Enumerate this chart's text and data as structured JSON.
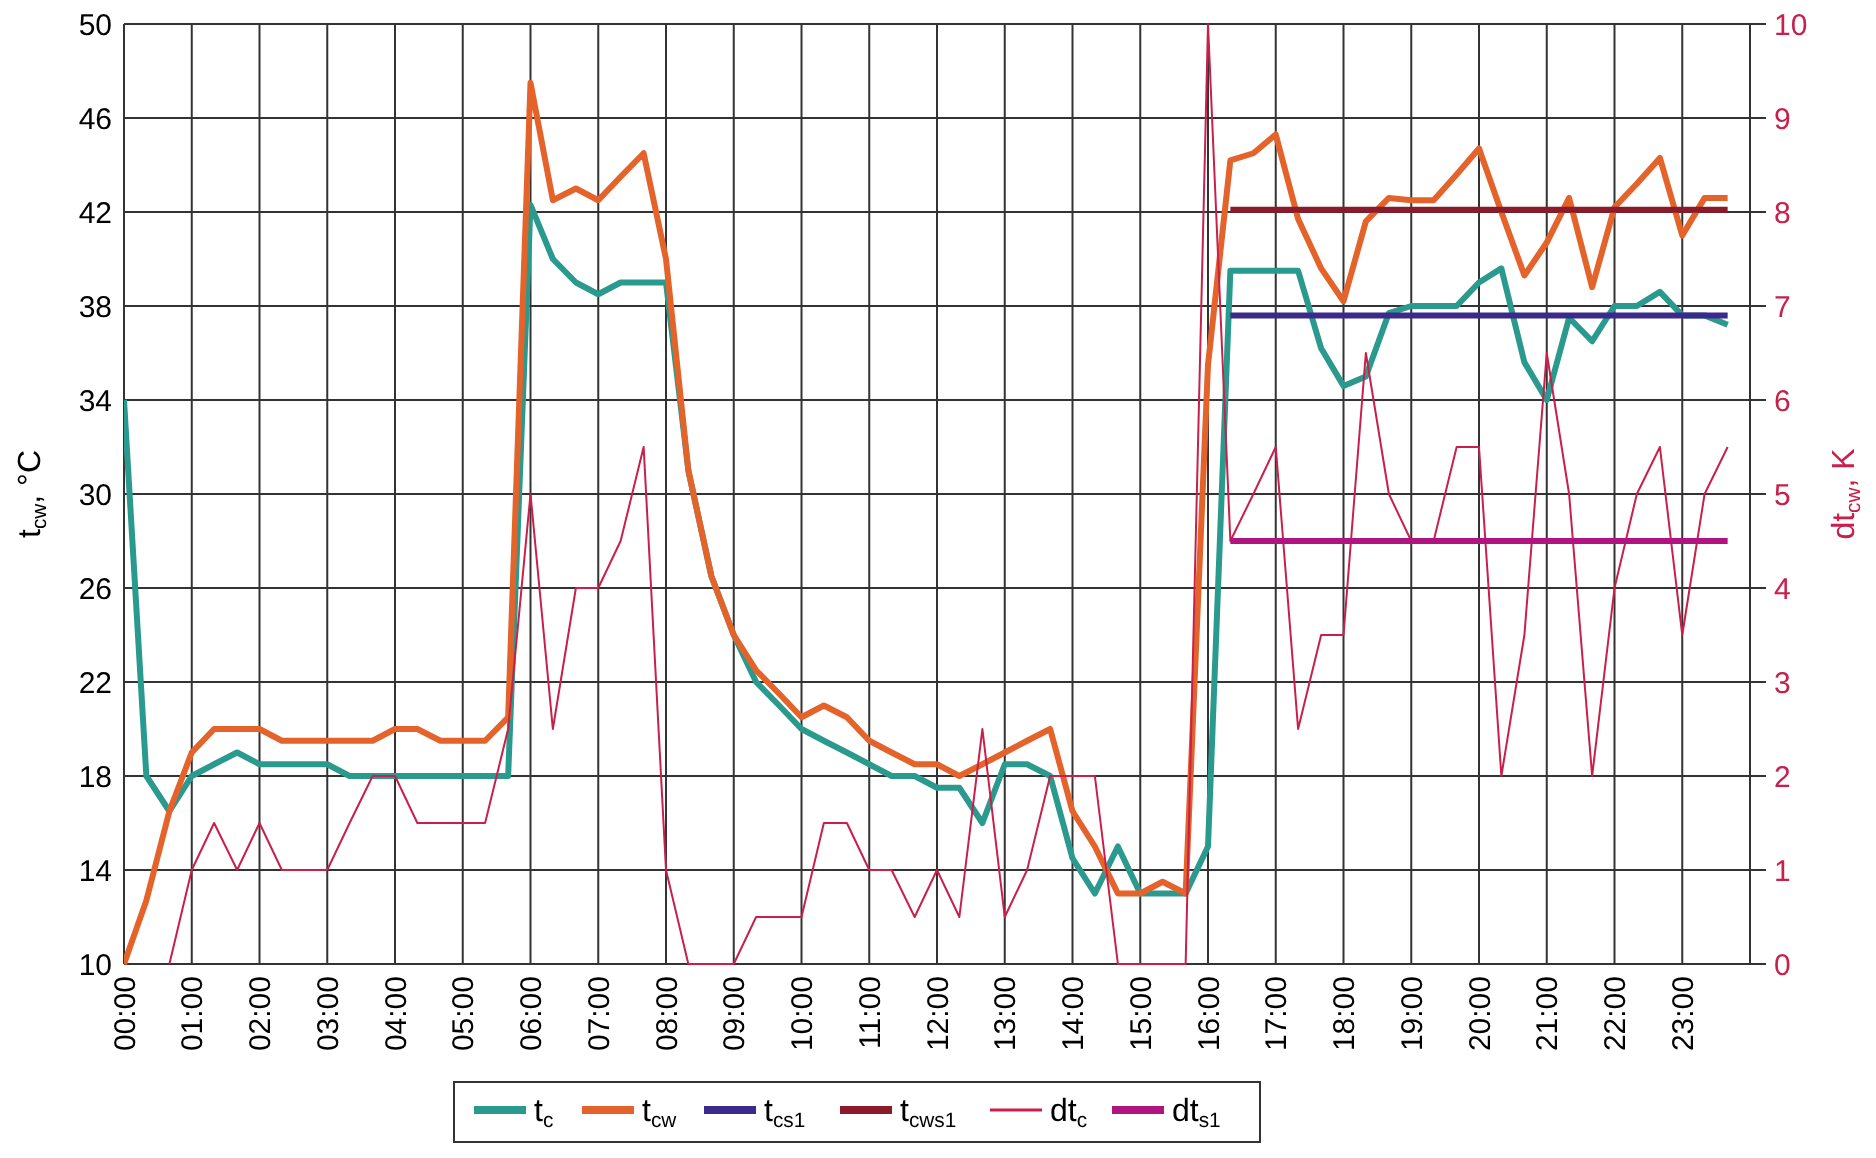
{
  "chart_data": {
    "type": "line",
    "ylabel": "t$_{cw}$, °C",
    "y2label": "dt$_{cw}$, K",
    "x": [
      0,
      0.33,
      0.67,
      1,
      1.33,
      1.67,
      2,
      2.33,
      2.67,
      3,
      3.33,
      3.67,
      4,
      4.33,
      4.67,
      5,
      5.33,
      5.67,
      6,
      6.33,
      6.67,
      7,
      7.33,
      7.67,
      8,
      8.33,
      8.67,
      9,
      9.33,
      9.67,
      10,
      10.33,
      10.67,
      11,
      11.33,
      11.67,
      12,
      12.33,
      12.67,
      13,
      13.33,
      13.67,
      14,
      14.33,
      14.67,
      15,
      15.33,
      15.67,
      16,
      16.33,
      16.67,
      17,
      17.33,
      17.67,
      18,
      18.33,
      18.67,
      19,
      19.33,
      19.67,
      20,
      20.33,
      20.67,
      21,
      21.33,
      21.67,
      22,
      22.33,
      22.67,
      23,
      23.33,
      23.67
    ],
    "series": [
      {
        "name": "t$_{c}$",
        "color": "#2a9a8e",
        "values": [
          34,
          18,
          16.5,
          18,
          18.5,
          19,
          18.5,
          18.5,
          18.5,
          18.5,
          18,
          18,
          18,
          18,
          18,
          18,
          18,
          18,
          42.3,
          40,
          39,
          38.5,
          39,
          39,
          39,
          31,
          26.5,
          24,
          22,
          21,
          20,
          19.5,
          19,
          18.5,
          18,
          18,
          17.5,
          17.5,
          16,
          18.5,
          18.5,
          18,
          14.5,
          13,
          15,
          13,
          13,
          13,
          15,
          39.5,
          39.5,
          39.5,
          39.5,
          36.2,
          34.6,
          35,
          37.7,
          38,
          38,
          38,
          39,
          39.6,
          35.6,
          34,
          37.5,
          36.5,
          38,
          38,
          38.6,
          37.6,
          37.6,
          37.2
        ]
      },
      {
        "name": "t$_{cw}$",
        "color": "#e4632a",
        "values": [
          10,
          12.7,
          16.5,
          19,
          20,
          20,
          20,
          19.5,
          19.5,
          19.5,
          19.5,
          19.5,
          20,
          20,
          19.5,
          19.5,
          19.5,
          20.5,
          47.5,
          42.5,
          43,
          42.5,
          43.5,
          44.5,
          40,
          31,
          26.5,
          24,
          22.5,
          21.5,
          20.5,
          21,
          20.5,
          19.5,
          19,
          18.5,
          18.5,
          18,
          18.5,
          19,
          19.5,
          20,
          16.5,
          15,
          13,
          13,
          13.5,
          13,
          35.5,
          44.2,
          44.5,
          45.3,
          41.7,
          39.6,
          38.2,
          41.6,
          42.6,
          42.5,
          42.5,
          43.6,
          44.7,
          42,
          39.3,
          40.7,
          42.6,
          38.8,
          42.2,
          43.2,
          44.3,
          41,
          42.6,
          42.6
        ]
      },
      {
        "name": "t$_{cs1}$",
        "color": "#3b2a8c",
        "values": [
          null,
          null,
          null,
          null,
          null,
          null,
          null,
          null,
          null,
          null,
          null,
          null,
          null,
          null,
          null,
          null,
          null,
          null,
          null,
          null,
          null,
          null,
          null,
          null,
          null,
          null,
          null,
          null,
          null,
          null,
          null,
          null,
          null,
          null,
          null,
          null,
          null,
          null,
          null,
          null,
          null,
          null,
          null,
          null,
          null,
          null,
          null,
          null,
          null,
          37.6,
          37.6,
          37.6,
          37.6,
          37.6,
          37.6,
          37.6,
          37.6,
          37.6,
          37.6,
          37.6,
          37.6,
          37.6,
          37.6,
          37.6,
          37.6,
          37.6,
          37.6,
          37.6,
          37.6,
          37.6,
          37.6,
          37.6
        ]
      },
      {
        "name": "t$_{cws1}$",
        "color": "#8b1a2a",
        "values": [
          null,
          null,
          null,
          null,
          null,
          null,
          null,
          null,
          null,
          null,
          null,
          null,
          null,
          null,
          null,
          null,
          null,
          null,
          null,
          null,
          null,
          null,
          null,
          null,
          null,
          null,
          null,
          null,
          null,
          null,
          null,
          null,
          null,
          null,
          null,
          null,
          null,
          null,
          null,
          null,
          null,
          null,
          null,
          null,
          null,
          null,
          null,
          null,
          null,
          42.1,
          42.1,
          42.1,
          42.1,
          42.1,
          42.1,
          42.1,
          42.1,
          42.1,
          42.1,
          42.1,
          42.1,
          42.1,
          42.1,
          42.1,
          42.1,
          42.1,
          42.1,
          42.1,
          42.1,
          42.1,
          42.1,
          42.1
        ]
      },
      {
        "name": "dt$_{c}$",
        "color": "#c8204a",
        "axis": "y2",
        "values": [
          null,
          null,
          0,
          1,
          1.5,
          1,
          1.5,
          1,
          1,
          1,
          1.5,
          2,
          2,
          1.5,
          1.5,
          1.5,
          1.5,
          2.5,
          5,
          2.5,
          4,
          4,
          4.5,
          5.5,
          1,
          0,
          0,
          0,
          0.5,
          0.5,
          0.5,
          1.5,
          1.5,
          1,
          1,
          0.5,
          1,
          0.5,
          2.5,
          0.5,
          1,
          2,
          2,
          2,
          0,
          0,
          0,
          0,
          10,
          4.5,
          5,
          5.5,
          2.5,
          3.5,
          3.5,
          6.5,
          5,
          4.5,
          4.5,
          5.5,
          5.5,
          2,
          3.5,
          6.5,
          5,
          2,
          4,
          5,
          5.5,
          3.5,
          5,
          5.5
        ]
      },
      {
        "name": "dt$_{s1}$",
        "color": "#b0147e",
        "axis": "y2",
        "values": [
          null,
          null,
          null,
          null,
          null,
          null,
          null,
          null,
          null,
          null,
          null,
          null,
          null,
          null,
          null,
          null,
          null,
          null,
          null,
          null,
          null,
          null,
          null,
          null,
          null,
          null,
          null,
          null,
          null,
          null,
          null,
          null,
          null,
          null,
          null,
          null,
          null,
          null,
          null,
          null,
          null,
          null,
          null,
          null,
          null,
          null,
          null,
          null,
          null,
          4.5,
          4.5,
          4.5,
          4.5,
          4.5,
          4.5,
          4.5,
          4.5,
          4.5,
          4.5,
          4.5,
          4.5,
          4.5,
          4.5,
          4.5,
          4.5,
          4.5,
          4.5,
          4.5,
          4.5,
          4.5,
          4.5,
          4.5
        ]
      }
    ],
    "xlim": [
      0,
      24
    ],
    "xticks": [
      {
        "value": 0,
        "label": "00:00"
      },
      {
        "value": 1,
        "label": "01:00"
      },
      {
        "value": 2,
        "label": "02:00"
      },
      {
        "value": 3,
        "label": "03:00"
      },
      {
        "value": 4,
        "label": "04:00"
      },
      {
        "value": 5,
        "label": "05:00"
      },
      {
        "value": 6,
        "label": "06:00"
      },
      {
        "value": 7,
        "label": "07:00"
      },
      {
        "value": 8,
        "label": "08:00"
      },
      {
        "value": 9,
        "label": "09:00"
      },
      {
        "value": 10,
        "label": "10:00"
      },
      {
        "value": 11,
        "label": "11:00"
      },
      {
        "value": 12,
        "label": "12:00"
      },
      {
        "value": 13,
        "label": "13:00"
      },
      {
        "value": 14,
        "label": "14:00"
      },
      {
        "value": 15,
        "label": "15:00"
      },
      {
        "value": 16,
        "label": "16:00"
      },
      {
        "value": 17,
        "label": "17:00"
      },
      {
        "value": 18,
        "label": "18:00"
      },
      {
        "value": 19,
        "label": "19:00"
      },
      {
        "value": 20,
        "label": "20:00"
      },
      {
        "value": 21,
        "label": "21:00"
      },
      {
        "value": 22,
        "label": "22:00"
      },
      {
        "value": 23,
        "label": "23:00"
      }
    ],
    "ylim": [
      10,
      50
    ],
    "yticks": [
      10,
      14,
      18,
      22,
      26,
      30,
      34,
      38,
      42,
      46,
      50
    ],
    "y2lim": [
      0,
      10
    ],
    "y2ticks": [
      0,
      1,
      2,
      3,
      4,
      5,
      6,
      7,
      8,
      9,
      10
    ],
    "grid": true,
    "legend": "bottom",
    "marker": "none",
    "line_style": "solid"
  }
}
